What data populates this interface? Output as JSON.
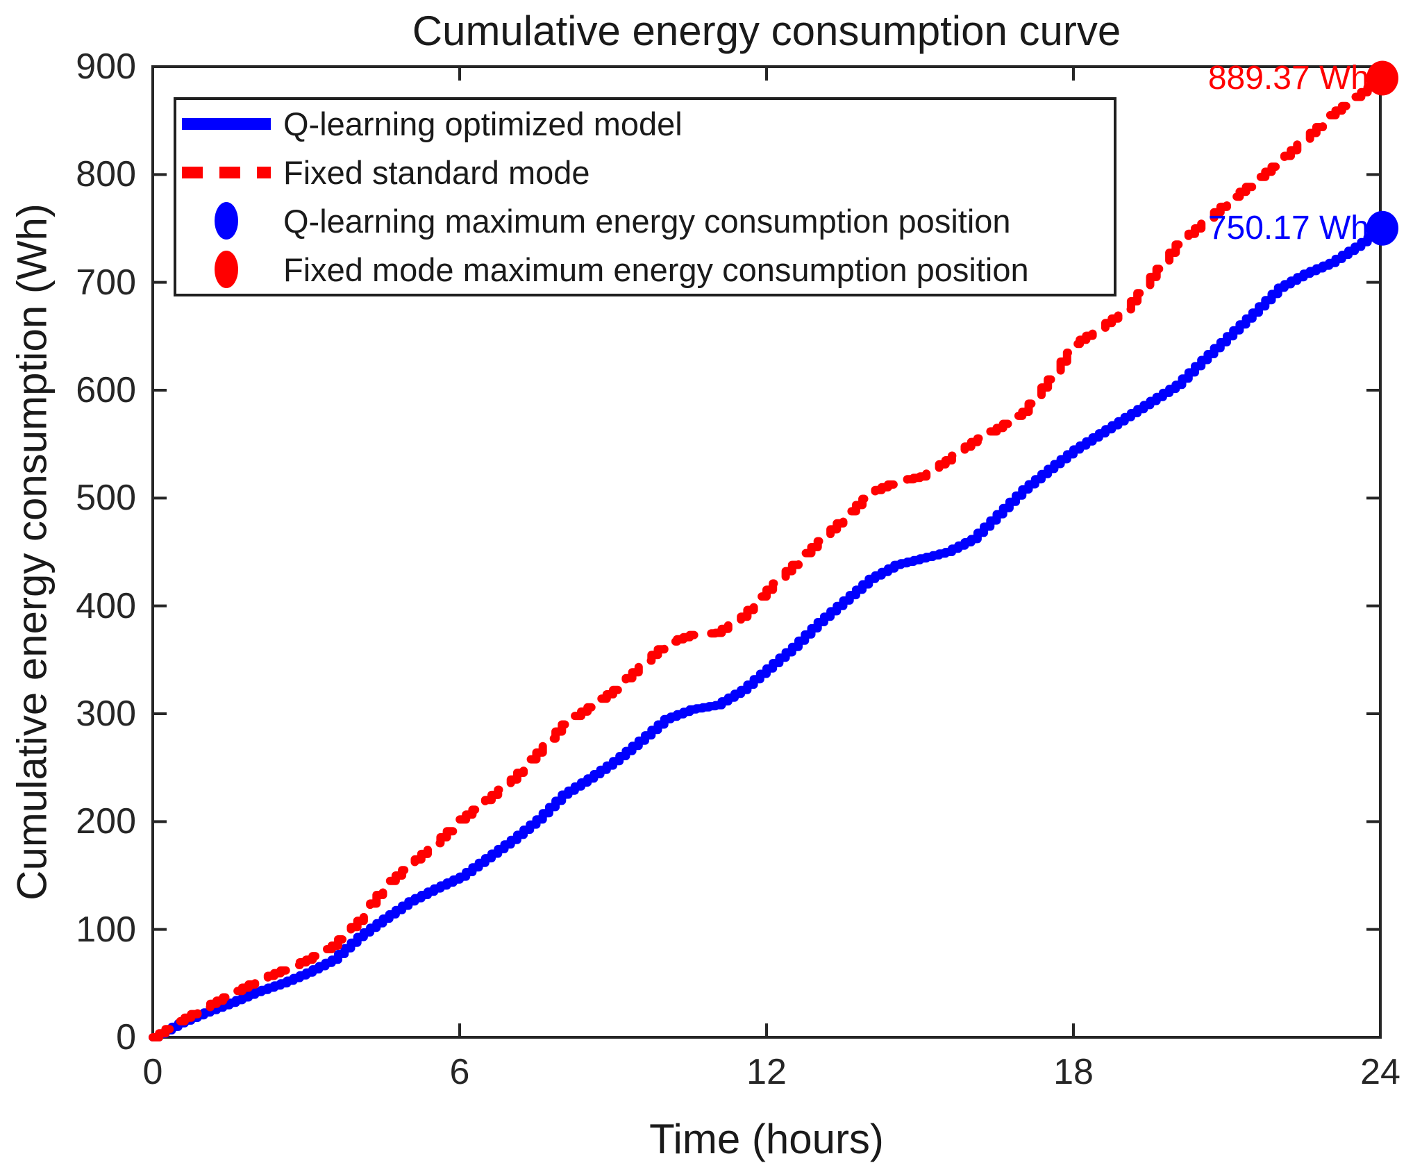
{
  "figure": {
    "title": "Cumulative energy consumption curve",
    "xlabel": "Time (hours)",
    "ylabel": "Cumulative energy consumption (Wh)",
    "background": "#ffffff",
    "axis_color": "#262626"
  },
  "legend": {
    "position": "top-left",
    "items": [
      {
        "label": "Q-learning optimized model",
        "swatch": "line-solid",
        "color": "#0000ff"
      },
      {
        "label": "Fixed standard mode",
        "swatch": "line-dashed",
        "color": "#ff0000"
      },
      {
        "label": "Q-learning maximum energy consumption position",
        "swatch": "dot",
        "color": "#0000ff"
      },
      {
        "label": "Fixed mode maximum energy consumption position",
        "swatch": "dot",
        "color": "#ff0000"
      }
    ]
  },
  "annotations": [
    {
      "text": "889.37 Wh",
      "color": "#ff0000",
      "value": 889.37,
      "x": 24
    },
    {
      "text": "750.17 Wh",
      "color": "#0000ff",
      "value": 750.17,
      "x": 24
    }
  ],
  "chart_data": {
    "type": "line",
    "title": "Cumulative energy consumption curve",
    "xlabel": "Time (hours)",
    "ylabel": "Cumulative energy consumption (Wh)",
    "xlim": [
      0,
      24
    ],
    "ylim": [
      0,
      900
    ],
    "xticks": [
      0,
      6,
      12,
      18,
      24
    ],
    "yticks": [
      0,
      100,
      200,
      300,
      400,
      500,
      600,
      700,
      800,
      900
    ],
    "grid": false,
    "legend_position": "top-left",
    "line_style": "staircase",
    "x": [
      0,
      0.5,
      1,
      1.5,
      2,
      2.5,
      3,
      3.5,
      4,
      4.5,
      5,
      5.5,
      6,
      6.5,
      7,
      7.5,
      8,
      8.5,
      9,
      9.5,
      10,
      10.5,
      11,
      11.5,
      12,
      12.5,
      13,
      13.5,
      14,
      14.5,
      15,
      15.5,
      16,
      16.5,
      17,
      17.5,
      18,
      18.5,
      19,
      19.5,
      20,
      20.5,
      21,
      21.5,
      22,
      22.5,
      23,
      23.5,
      24
    ],
    "series": [
      {
        "name": "Q-learning optimized model",
        "color": "#0000ff",
        "style": "solid",
        "values": [
          0,
          13,
          23,
          32,
          42,
          50,
          60,
          72,
          93,
          110,
          126,
          138,
          149,
          166,
          183,
          202,
          225,
          240,
          256,
          275,
          295,
          304,
          308,
          322,
          342,
          362,
          385,
          405,
          425,
          438,
          444,
          450,
          462,
          485,
          508,
          527,
          545,
          560,
          575,
          590,
          605,
          628,
          650,
          672,
          695,
          708,
          718,
          733,
          750.17
        ],
        "max_point": {
          "x": 24,
          "y": 750.17
        },
        "max_label": "750.17 Wh"
      },
      {
        "name": "Fixed standard mode",
        "color": "#ff0000",
        "style": "dashed",
        "values": [
          0,
          15,
          28,
          40,
          52,
          62,
          72,
          85,
          108,
          140,
          160,
          180,
          202,
          220,
          239,
          264,
          290,
          306,
          322,
          344,
          365,
          373,
          375,
          390,
          415,
          438,
          460,
          482,
          505,
          515,
          520,
          535,
          552,
          565,
          580,
          610,
          643,
          658,
          675,
          705,
          735,
          755,
          775,
          793,
          812,
          833,
          855,
          872,
          889.37
        ],
        "max_point": {
          "x": 24,
          "y": 889.37
        },
        "max_label": "889.37 Wh"
      }
    ]
  }
}
